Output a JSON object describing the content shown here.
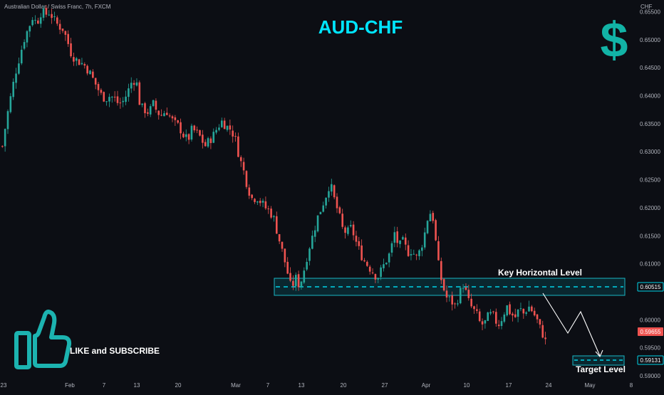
{
  "header": {
    "symbol_line": "Australian Dollar / Swiss Franc, 7h, FXCM"
  },
  "title": "AUD-CHF",
  "currency_axis_label": "CHF",
  "icons": {
    "dollar": "dollar-sign-icon",
    "thumbs_up": "thumbs-up-icon"
  },
  "cta_text": "LIKE and SUBSCRIBE",
  "annotations": {
    "key_level_label": "Key Horizontal Level",
    "target_label": "Target Level"
  },
  "price_tags": {
    "key_level": "0.60515",
    "current": "0.59655",
    "target": "0.59131"
  },
  "colors": {
    "background": "#0c0e14",
    "bull": "#26a69a",
    "bear": "#ef5350",
    "accent": "#00d4e8",
    "title": "#00e5ff",
    "zone_fill": "rgba(0,188,212,0.14)",
    "zone_stroke": "#19b7c4"
  },
  "chart_data": {
    "type": "candlestick",
    "title": "AUD-CHF",
    "xlabel": "",
    "ylabel": "CHF",
    "ylim": [
      0.5872,
      0.6571
    ],
    "y_ticks": [
      "0.65500",
      "0.65000",
      "0.64500",
      "0.64000",
      "0.63500",
      "0.63000",
      "0.62500",
      "0.62000",
      "0.61500",
      "0.61000",
      "0.60000",
      "0.59500",
      "0.59000"
    ],
    "x_ticks": [
      "23",
      "Feb",
      "7",
      "13",
      "20",
      "Mar",
      "7",
      "13",
      "20",
      "27",
      "Apr",
      "10",
      "17",
      "24",
      "May",
      "8"
    ],
    "grid": false,
    "close_path": [
      0.631,
      0.636,
      0.64,
      0.644,
      0.647,
      0.65,
      0.652,
      0.654,
      0.653,
      0.655,
      0.6545,
      0.655,
      0.6535,
      0.6525,
      0.652,
      0.65,
      0.6475,
      0.6465,
      0.646,
      0.6455,
      0.6445,
      0.643,
      0.6415,
      0.64,
      0.6395,
      0.64,
      0.6395,
      0.6385,
      0.639,
      0.6405,
      0.6425,
      0.643,
      0.638,
      0.6375,
      0.637,
      0.6385,
      0.637,
      0.6365,
      0.6375,
      0.636,
      0.635,
      0.6345,
      0.633,
      0.632,
      0.634,
      0.6335,
      0.6325,
      0.631,
      0.632,
      0.633,
      0.6345,
      0.6355,
      0.6345,
      0.634,
      0.6325,
      0.629,
      0.6265,
      0.6235,
      0.6215,
      0.622,
      0.621,
      0.62,
      0.6195,
      0.618,
      0.615,
      0.612,
      0.609,
      0.6055,
      0.6075,
      0.606,
      0.609,
      0.6125,
      0.615,
      0.618,
      0.62,
      0.622,
      0.6245,
      0.6215,
      0.619,
      0.616,
      0.6155,
      0.6165,
      0.614,
      0.612,
      0.6105,
      0.6095,
      0.6085,
      0.6075,
      0.609,
      0.6105,
      0.612,
      0.6155,
      0.613,
      0.614,
      0.612,
      0.6125,
      0.611,
      0.6125,
      0.6155,
      0.6195,
      0.618,
      0.6105,
      0.6065,
      0.604,
      0.6035,
      0.6025,
      0.6045,
      0.6065,
      0.6035,
      0.602,
      0.601,
      0.599,
      0.5995,
      0.601,
      0.6005,
      0.599,
      0.6005,
      0.6025,
      0.601,
      0.6005,
      0.602,
      0.601,
      0.6025,
      0.6015,
      0.6,
      0.598,
      0.59655
    ],
    "projection": {
      "type": "line",
      "points": [
        {
          "x": "Apr 24",
          "y": 0.6035
        },
        {
          "x": "Apr 27",
          "y": 0.598
        },
        {
          "x": "May 1",
          "y": 0.6005
        },
        {
          "x": "May 4",
          "y": 0.5915
        }
      ]
    },
    "levels": [
      {
        "name": "Key Horizontal Level",
        "value": 0.60515
      },
      {
        "name": "Target Level",
        "value": 0.59131
      }
    ],
    "last_price": 0.59655
  }
}
